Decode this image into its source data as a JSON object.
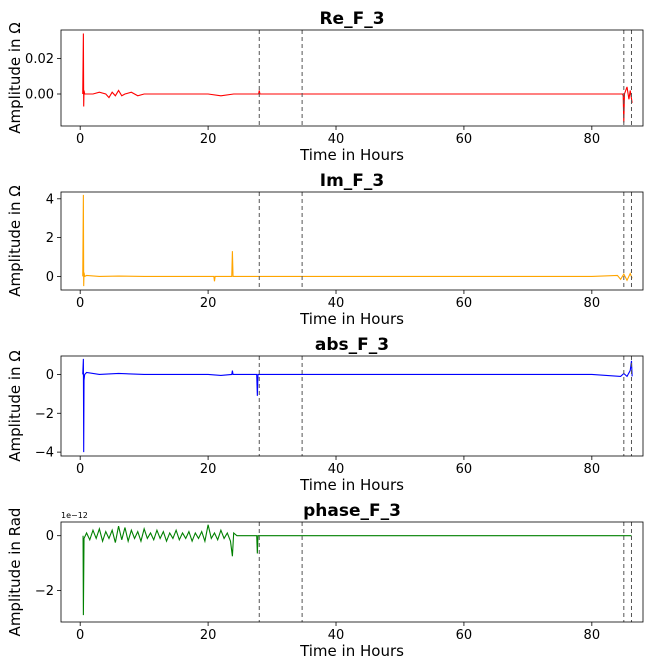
{
  "chart_data": [
    {
      "type": "line",
      "title": "Re_F_3",
      "xlabel": "Time in Hours",
      "ylabel": "Amplitude in Ω",
      "xlim": [
        -3,
        88
      ],
      "ylim": [
        -0.018,
        0.036
      ],
      "xticks": [
        0,
        20,
        40,
        60,
        80
      ],
      "xtick_labels": [
        "0",
        "20",
        "40",
        "60",
        "80"
      ],
      "yticks": [
        0.0,
        0.02
      ],
      "ytick_labels": [
        "0.00",
        "0.02"
      ],
      "offset_label": "",
      "color": "#ff0000",
      "vlines": [
        28.0,
        34.7,
        85.0,
        86.2
      ],
      "series": [
        {
          "name": "Re_F_3",
          "x": [
            0.4,
            0.5,
            0.55,
            0.6,
            0.7,
            1,
            2,
            3,
            4,
            4.5,
            5,
            5.5,
            6,
            6.5,
            7,
            8,
            9,
            10,
            12,
            15,
            18,
            20,
            22,
            24,
            26,
            27.9,
            28.0,
            28.1,
            30,
            34,
            40,
            50,
            60,
            70,
            80,
            84.8,
            84.9,
            85.0,
            85.1,
            85.5,
            85.8,
            86.0,
            86.3
          ],
          "y": [
            0.0,
            0.034,
            -0.007,
            0.002,
            0.0,
            0.0,
            0.0,
            0.001,
            0.0,
            -0.002,
            0.001,
            -0.001,
            0.002,
            -0.001,
            0.0,
            0.001,
            -0.001,
            0.0,
            0.0,
            0.0,
            0.0,
            0.0,
            -0.001,
            0.0,
            0.0,
            0.0,
            0.002,
            0.0,
            0.0,
            0.0,
            0.0,
            0.0,
            0.0,
            0.0,
            0.0,
            0.0,
            -0.001,
            -0.016,
            0.0,
            0.004,
            -0.003,
            0.002,
            -0.005
          ]
        }
      ]
    },
    {
      "type": "line",
      "title": "Im_F_3",
      "xlabel": "Time in Hours",
      "ylabel": "Amplitude in Ω",
      "xlim": [
        -3,
        88
      ],
      "ylim": [
        -0.7,
        4.35
      ],
      "xticks": [
        0,
        20,
        40,
        60,
        80
      ],
      "xtick_labels": [
        "0",
        "20",
        "40",
        "60",
        "80"
      ],
      "yticks": [
        0,
        2,
        4
      ],
      "ytick_labels": [
        "0",
        "2",
        "4"
      ],
      "offset_label": "",
      "color": "#ffa500",
      "vlines": [
        28.0,
        34.7,
        85.0,
        86.2
      ],
      "series": [
        {
          "name": "Im_F_3",
          "x": [
            0.4,
            0.5,
            0.55,
            0.6,
            0.7,
            1,
            3,
            6,
            10,
            15,
            20,
            20.9,
            21.0,
            21.1,
            23.7,
            23.8,
            23.9,
            26,
            30,
            40,
            50,
            60,
            70,
            80,
            84,
            84.5,
            85,
            85.5,
            86,
            86.3
          ],
          "y": [
            0.0,
            4.2,
            -0.5,
            0.2,
            0.0,
            0.05,
            0.0,
            0.02,
            0.0,
            0.0,
            0.0,
            0.0,
            -0.25,
            0.0,
            0.0,
            1.3,
            0.0,
            0.0,
            0.0,
            0.0,
            0.0,
            0.0,
            0.0,
            0.0,
            0.05,
            -0.15,
            0.12,
            -0.2,
            0.15,
            -0.1
          ]
        }
      ]
    },
    {
      "type": "line",
      "title": "abs_F_3",
      "xlabel": "Time in Hours",
      "ylabel": "Amplitude in Ω",
      "xlim": [
        -3,
        88
      ],
      "ylim": [
        -4.2,
        0.95
      ],
      "xticks": [
        0,
        20,
        40,
        60,
        80
      ],
      "xtick_labels": [
        "0",
        "20",
        "40",
        "60",
        "80"
      ],
      "yticks": [
        0,
        -2,
        -4
      ],
      "ytick_labels": [
        "0",
        "−2",
        "−4"
      ],
      "offset_label": "",
      "color": "#0000ff",
      "vlines": [
        28.0,
        34.7,
        85.0,
        86.2
      ],
      "series": [
        {
          "name": "abs_F_3",
          "x": [
            0.4,
            0.5,
            0.55,
            0.6,
            0.7,
            1,
            3,
            6,
            10,
            15,
            20,
            22,
            23.7,
            23.8,
            23.9,
            27.6,
            27.7,
            27.8,
            30,
            40,
            50,
            60,
            70,
            80,
            84.5,
            85,
            85.5,
            86,
            86.2,
            86.3
          ],
          "y": [
            0.0,
            0.8,
            -4.0,
            -0.3,
            0.0,
            0.1,
            0.0,
            0.05,
            0.0,
            0.0,
            0.0,
            -0.05,
            0.0,
            0.2,
            0.0,
            0.0,
            -1.1,
            0.0,
            0.0,
            0.0,
            0.0,
            0.0,
            0.0,
            0.0,
            -0.1,
            0.05,
            -0.1,
            0.2,
            0.7,
            -0.1
          ]
        }
      ]
    },
    {
      "type": "line",
      "title": "phase_F_3",
      "xlabel": "Time in Hours",
      "ylabel": "Amplitude in Rad",
      "xlim": [
        -3,
        88
      ],
      "ylim": [
        -3.15,
        0.5
      ],
      "xticks": [
        0,
        20,
        40,
        60,
        80
      ],
      "xtick_labels": [
        "0",
        "20",
        "40",
        "60",
        "80"
      ],
      "yticks": [
        0,
        -2
      ],
      "ytick_labels": [
        "0",
        "−2"
      ],
      "offset_label": "1e−12",
      "color": "#008000",
      "vlines": [
        28.0,
        34.7,
        85.0,
        86.2
      ],
      "series": [
        {
          "name": "phase_F_3",
          "x": [
            0.45,
            0.5,
            0.6,
            1,
            1.5,
            2,
            2.5,
            3,
            3.5,
            4,
            4.5,
            5,
            5.5,
            6,
            6.5,
            7,
            7.5,
            8,
            8.5,
            9,
            9.5,
            10,
            10.5,
            11,
            11.5,
            12,
            12.5,
            13,
            13.5,
            14,
            14.5,
            15,
            15.5,
            16,
            16.5,
            17,
            17.5,
            18,
            18.5,
            19,
            19.5,
            20,
            20.5,
            21,
            21.5,
            22,
            22.5,
            23,
            23.5,
            23.8,
            24,
            24.5,
            27.6,
            27.7,
            27.8,
            28.5,
            40,
            60,
            80,
            86.2
          ],
          "y": [
            0.0,
            -2.9,
            -0.1,
            0.1,
            -0.15,
            0.2,
            -0.1,
            0.25,
            -0.2,
            0.15,
            -0.1,
            0.2,
            -0.25,
            0.35,
            -0.15,
            0.3,
            -0.2,
            0.2,
            -0.1,
            0.15,
            -0.2,
            0.25,
            -0.1,
            0.1,
            -0.15,
            0.2,
            -0.1,
            0.15,
            -0.2,
            0.1,
            -0.1,
            0.2,
            -0.15,
            0.1,
            -0.1,
            0.15,
            -0.2,
            0.1,
            -0.1,
            0.15,
            -0.2,
            0.4,
            -0.1,
            0.1,
            -0.15,
            0.2,
            -0.1,
            0.1,
            -0.2,
            -0.75,
            0.1,
            0.0,
            0.0,
            -0.65,
            0.0,
            0.0,
            0.0,
            0.0,
            0.0,
            0.0
          ]
        }
      ]
    }
  ]
}
